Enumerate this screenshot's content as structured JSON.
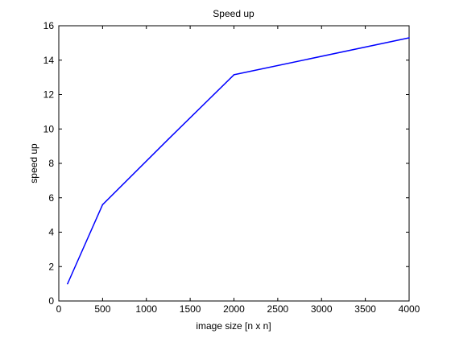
{
  "chart_data": {
    "type": "line",
    "title": "Speed up",
    "xlabel": "image size [n x n]",
    "ylabel": "speed up",
    "xlim": [
      0,
      4000
    ],
    "ylim": [
      0,
      16
    ],
    "x_ticks": [
      0,
      500,
      1000,
      1500,
      2000,
      2500,
      3000,
      3500,
      4000
    ],
    "y_ticks": [
      0,
      2,
      4,
      6,
      8,
      10,
      12,
      14,
      16
    ],
    "grid": false,
    "series": [
      {
        "color": "#0000ff",
        "x": [
          100,
          500,
          1250,
          2000,
          4000
        ],
        "y": [
          1.0,
          5.6,
          9.4,
          13.15,
          15.3
        ]
      }
    ]
  }
}
